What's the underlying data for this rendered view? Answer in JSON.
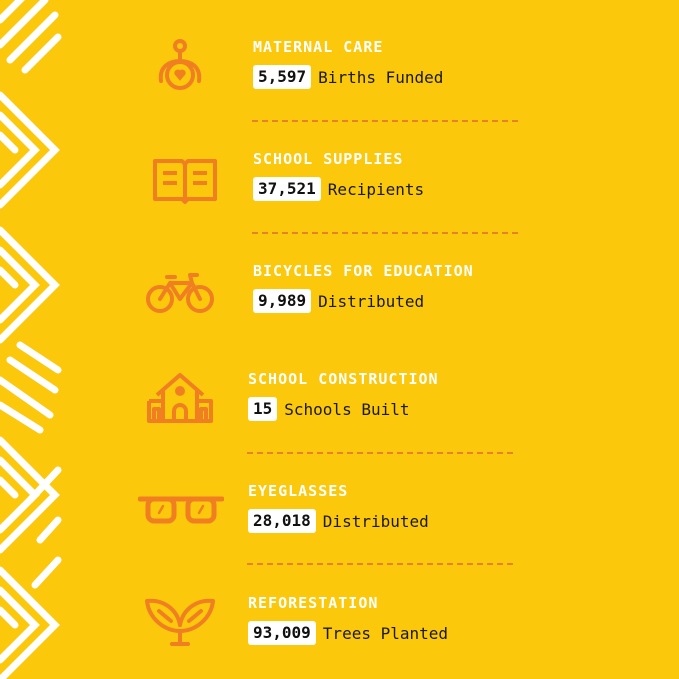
{
  "colors": {
    "background": "#fcc80b",
    "icon": "#f07f22",
    "heading": "#ffffff",
    "pattern": "#ffffff"
  },
  "items": [
    {
      "icon": "mother-baby-icon",
      "heading": "MATERNAL CARE",
      "value": "5,597",
      "label": "Births Funded"
    },
    {
      "icon": "open-book-icon",
      "heading": "SCHOOL SUPPLIES",
      "value": "37,521",
      "label": "Recipients"
    },
    {
      "icon": "bicycle-icon",
      "heading": "BICYCLES FOR EDUCATION",
      "value": "9,989",
      "label": "Distributed"
    },
    {
      "icon": "school-building-icon",
      "heading": "SCHOOL CONSTRUCTION",
      "value": "15",
      "label": "Schools Built"
    },
    {
      "icon": "eyeglasses-icon",
      "heading": "EYEGLASSES",
      "value": "28,018",
      "label": "Distributed"
    },
    {
      "icon": "sprout-icon",
      "heading": "REFORESTATION",
      "value": "93,009",
      "label": "Trees Planted"
    }
  ]
}
